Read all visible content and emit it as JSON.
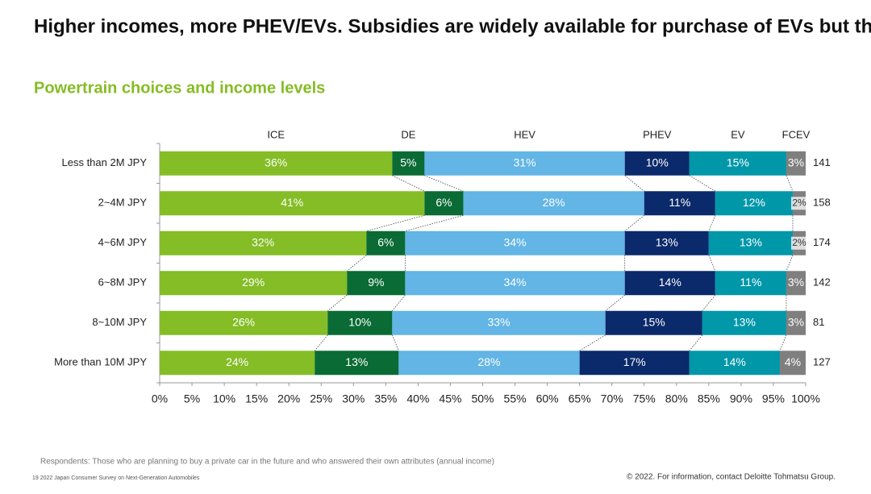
{
  "title": "Higher incomes, more PHEV/EVs. Subsidies are widely available for purchase of EVs but the prices would be still not affordable for lower income earners.",
  "footnote": "Respondents: Those who are planning to buy a private car in the future and who answered their own attributes (annual income)",
  "footer_left": "19   2022 Japan Consumer Survey on Next-Generation Automobiles",
  "footer_right": "© 2022. For information, contact Deloitte Tohmatsu Group.",
  "chart_data": {
    "type": "stacked_bar_horizontal",
    "subtitle": "Powertrain choices and income levels",
    "categories": [
      "Less than 2M JPY",
      "2~4M JPY",
      "4~6M JPY",
      "6~8M JPY",
      "8~10M JPY",
      "More than 10M JPY"
    ],
    "sample_sizes": [
      141,
      158,
      174,
      142,
      81,
      127
    ],
    "series": [
      {
        "name": "ICE",
        "color": "#84bd25",
        "values": [
          36,
          41,
          32,
          29,
          26,
          24
        ],
        "value_labels": [
          "36%",
          "41%",
          "32%",
          "29%",
          "26%",
          "24%"
        ]
      },
      {
        "name": "DE",
        "color": "#0a6b35",
        "values": [
          5,
          6,
          6,
          9,
          10,
          13
        ],
        "value_labels": [
          "5%",
          "6%",
          "6%",
          "9%",
          "10%",
          "13%"
        ]
      },
      {
        "name": "HEV",
        "color": "#62b5e5",
        "values": [
          31,
          28,
          34,
          34,
          33,
          28
        ],
        "value_labels": [
          "31%",
          "28%",
          "34%",
          "34%",
          "33%",
          "28%"
        ]
      },
      {
        "name": "PHEV",
        "color": "#0b2a6b",
        "values": [
          10,
          11,
          13,
          14,
          15,
          17
        ],
        "value_labels": [
          "10%",
          "11%",
          "13%",
          "14%",
          "15%",
          "17%"
        ]
      },
      {
        "name": "EV",
        "color": "#0097a9",
        "values": [
          15,
          12,
          13,
          11,
          13,
          14
        ],
        "value_labels": [
          "15%",
          "12%",
          "13%",
          "11%",
          "13%",
          "14%"
        ]
      },
      {
        "name": "FCEV",
        "color": "#7f7f7f",
        "values": [
          3,
          2,
          2,
          3,
          3,
          4
        ],
        "value_labels": [
          "3%",
          "2%",
          "2%",
          "3%",
          "3%",
          "4%"
        ]
      }
    ],
    "xlim": [
      0,
      100
    ],
    "xticks": [
      {
        "value": 0,
        "label": "0%"
      },
      {
        "value": 5,
        "label": "5%"
      },
      {
        "value": 10,
        "label": "10%"
      },
      {
        "value": 15,
        "label": "15%"
      },
      {
        "value": 20,
        "label": "20%"
      },
      {
        "value": 25,
        "label": "25%"
      },
      {
        "value": 30,
        "label": "30%"
      },
      {
        "value": 35,
        "label": "35%"
      },
      {
        "value": 40,
        "label": "40%"
      },
      {
        "value": 45,
        "label": "45%"
      },
      {
        "value": 50,
        "label": "50%"
      },
      {
        "value": 55,
        "label": "55%"
      },
      {
        "value": 60,
        "label": "60%"
      },
      {
        "value": 65,
        "label": "65%"
      },
      {
        "value": 70,
        "label": "70%"
      },
      {
        "value": 75,
        "label": "75%"
      },
      {
        "value": 80,
        "label": "80%"
      },
      {
        "value": 85,
        "label": "85%"
      },
      {
        "value": 90,
        "label": "90%"
      },
      {
        "value": 95,
        "label": "95%"
      },
      {
        "value": 100,
        "label": "100%"
      }
    ],
    "legend": "top"
  }
}
